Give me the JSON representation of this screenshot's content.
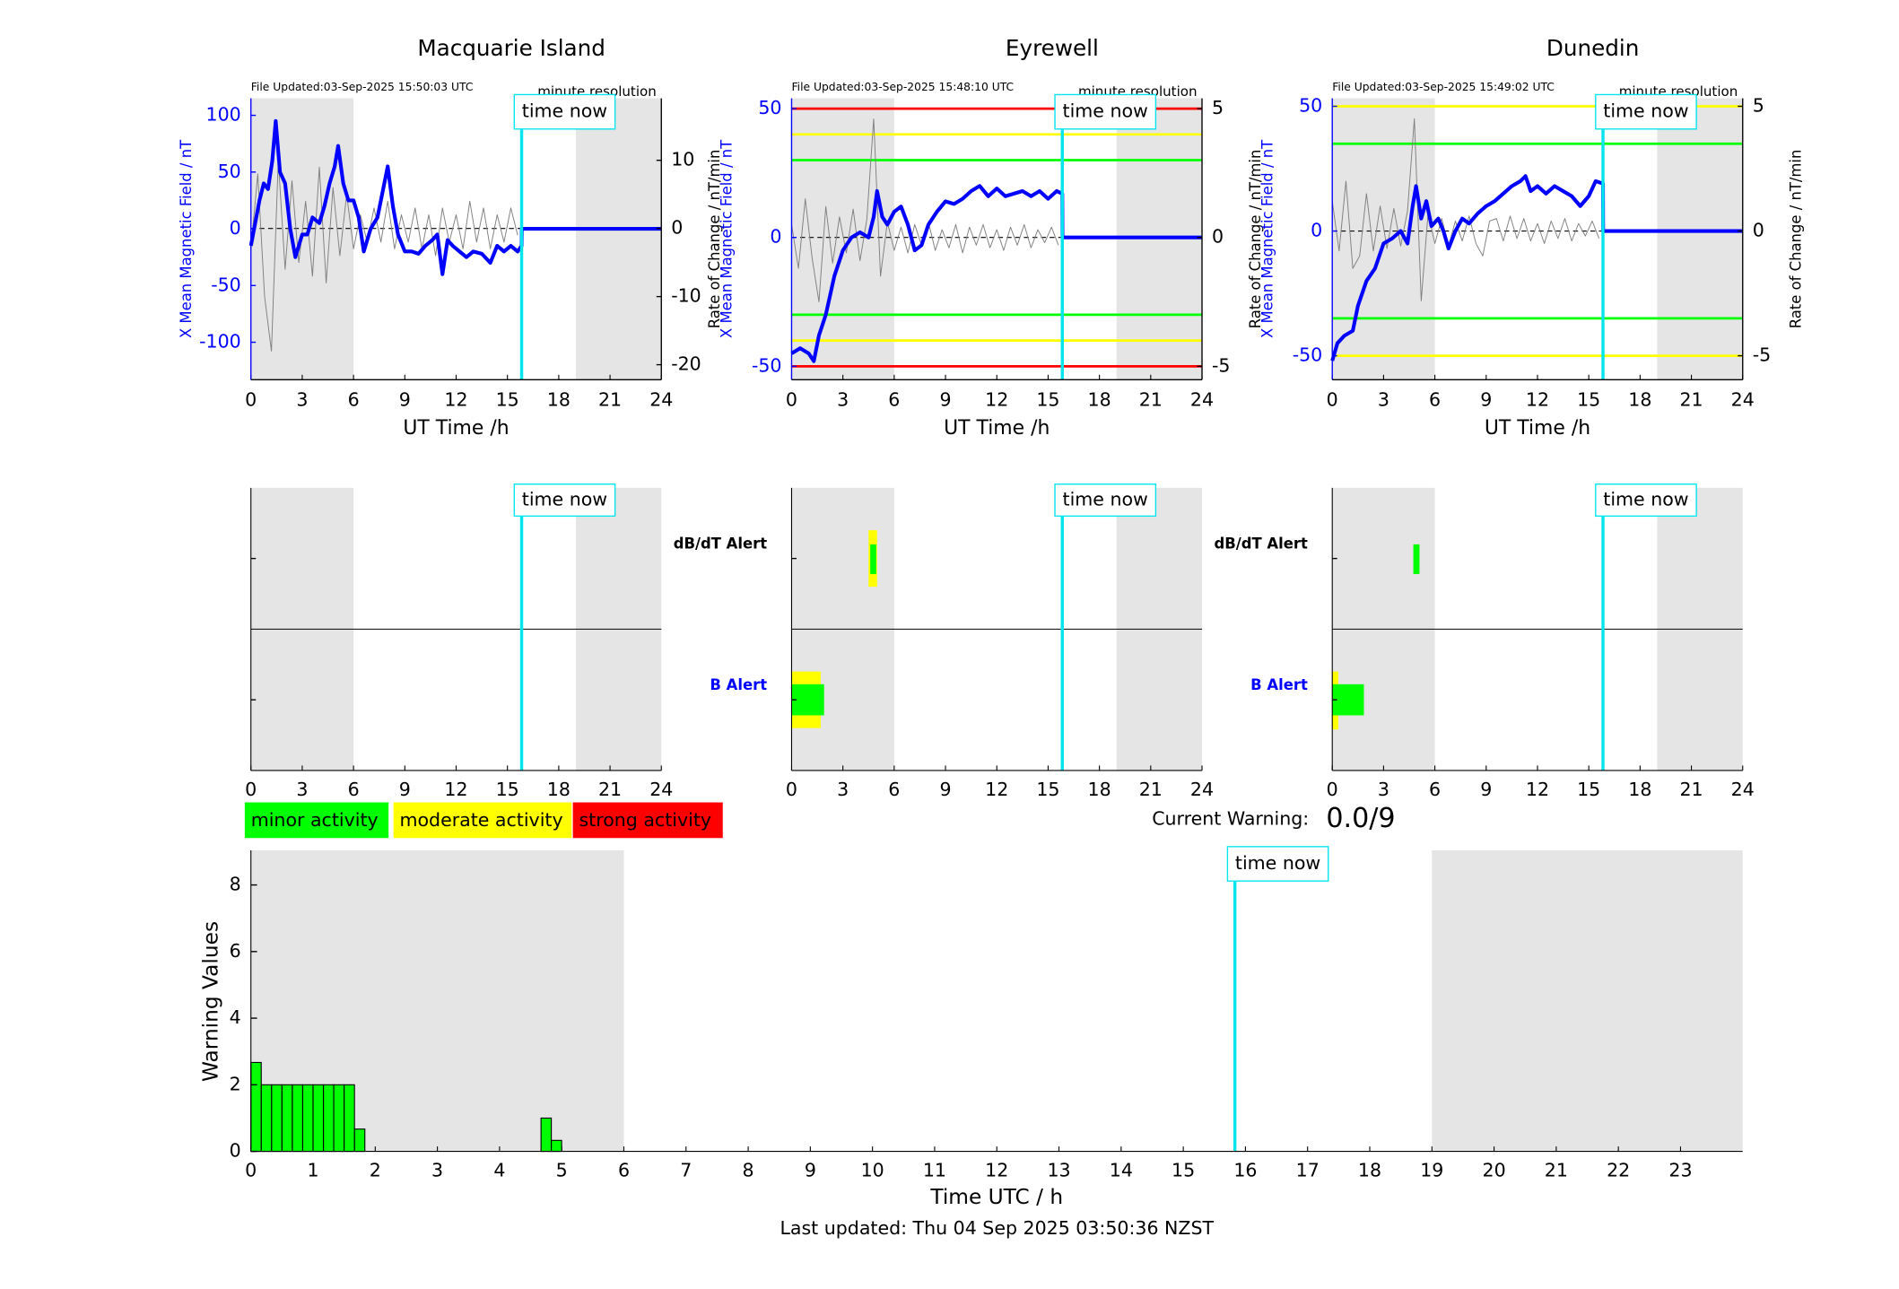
{
  "chart_data": [
    {
      "type": "line",
      "title": "Macquarie Island",
      "subtitle": "File Updated:03-Sep-2025 15:50:03 UTC",
      "note": "minute resolution",
      "xlabel": "UT Time /h",
      "ylabel": "X Mean Magnetic Field / nT",
      "y2label": "Rate of Change / nT/min",
      "xlim": [
        0,
        24
      ],
      "xticks": [
        0,
        3,
        6,
        9,
        12,
        15,
        18,
        21,
        24
      ],
      "ylim": [
        -133,
        115
      ],
      "yticks": [
        -100,
        -50,
        0,
        50,
        100
      ],
      "y2lim": [
        -22.2,
        19.1
      ],
      "y2ticks": [
        -20,
        -10,
        0,
        10
      ],
      "shaded": [
        [
          0,
          6
        ],
        [
          19,
          24
        ]
      ],
      "shade_color": "#e5e5e5",
      "annotation": {
        "text": "time now",
        "x": 15.83,
        "color": "#00e5ee"
      },
      "thresholds": [],
      "series": [
        {
          "axis": "y2",
          "color": "#808080",
          "x": [
            0,
            0.4,
            0.8,
            1.2,
            1.6,
            2,
            2.4,
            2.8,
            3.2,
            3.6,
            4,
            4.4,
            4.8,
            5.2,
            5.6,
            6,
            6.4,
            6.8,
            7.2,
            7.6,
            8,
            8.4,
            8.8,
            9.2,
            9.6,
            10,
            10.4,
            10.8,
            11.2,
            11.6,
            12,
            12.4,
            12.8,
            13.2,
            13.6,
            14,
            14.4,
            14.8,
            15.2,
            15.6
          ],
          "values": [
            -3,
            8,
            -10,
            -18,
            10,
            -6,
            7,
            -5,
            4,
            -7,
            9,
            -8,
            6,
            -4,
            5,
            -3,
            2,
            -2,
            3,
            -2,
            4,
            -3,
            2,
            -2,
            3,
            -3,
            2,
            -4,
            3,
            -2,
            2,
            -3,
            4,
            -2,
            3,
            -3,
            2,
            -2,
            3,
            -1
          ]
        },
        {
          "axis": "y",
          "color": "#0000ff",
          "x": [
            0,
            0.25,
            0.5,
            0.75,
            1,
            1.25,
            1.45,
            1.7,
            2,
            2.3,
            2.6,
            3,
            3.3,
            3.6,
            4,
            4.3,
            4.6,
            4.9,
            5.1,
            5.4,
            5.7,
            6,
            6.3,
            6.6,
            7,
            7.4,
            7.8,
            8,
            8.3,
            8.6,
            9,
            9.4,
            9.8,
            10.2,
            10.6,
            10.9,
            11.2,
            11.5,
            11.8,
            12.2,
            12.6,
            13,
            13.5,
            14,
            14.4,
            14.8,
            15.2,
            15.6,
            15.83,
            15.84,
            24
          ],
          "values": [
            -15,
            5,
            25,
            40,
            35,
            60,
            95,
            50,
            40,
            0,
            -25,
            -5,
            -5,
            10,
            5,
            20,
            40,
            55,
            73,
            40,
            25,
            25,
            10,
            -20,
            0,
            10,
            40,
            55,
            20,
            -5,
            -20,
            -20,
            -22,
            -15,
            -10,
            -5,
            -40,
            -10,
            -15,
            -20,
            -25,
            -20,
            -22,
            -30,
            -15,
            -20,
            -15,
            -20,
            -15,
            0,
            0
          ]
        }
      ]
    },
    {
      "type": "line",
      "title": "Eyrewell",
      "subtitle": "File Updated:03-Sep-2025 15:48:10 UTC",
      "note": "minute resolution",
      "xlabel": "UT Time /h",
      "ylabel": "X Mean Magnetic Field / nT",
      "y2label": "Rate of Change / nT/min",
      "xlim": [
        0,
        24
      ],
      "xticks": [
        0,
        3,
        6,
        9,
        12,
        15,
        18,
        21,
        24
      ],
      "ylim": [
        -55.2,
        54
      ],
      "yticks": [
        -50,
        0,
        50
      ],
      "y2lim": [
        -5.52,
        5.4
      ],
      "y2ticks": [
        -5,
        0,
        5
      ],
      "shaded": [
        [
          0,
          6
        ],
        [
          19,
          24
        ]
      ],
      "shade_color": "#e5e5e5",
      "annotation": {
        "text": "time now",
        "x": 15.83,
        "color": "#00e5ee"
      },
      "thresholds": [
        {
          "value": 50,
          "color": "#ff0000"
        },
        {
          "value": -50,
          "color": "#ff0000"
        },
        {
          "value": 40,
          "color": "#ffff00"
        },
        {
          "value": -40,
          "color": "#ffff00"
        },
        {
          "value": 30,
          "color": "#00ff00"
        },
        {
          "value": -30,
          "color": "#00ff00"
        }
      ],
      "series": [
        {
          "axis": "y2",
          "color": "#808080",
          "x": [
            0,
            0.4,
            0.8,
            1.2,
            1.6,
            2,
            2.4,
            2.8,
            3.2,
            3.6,
            4,
            4.4,
            4.8,
            5.2,
            5.6,
            6,
            6.4,
            6.8,
            7.2,
            7.6,
            8,
            8.4,
            8.8,
            9.2,
            9.6,
            10,
            10.4,
            10.8,
            11.2,
            11.6,
            12,
            12.4,
            12.8,
            13.2,
            13.6,
            14,
            14.4,
            14.8,
            15.2,
            15.6
          ],
          "values": [
            0.5,
            -1.2,
            1.5,
            -0.8,
            -2.5,
            1.2,
            -1,
            0.8,
            -0.6,
            1.1,
            -0.9,
            0.7,
            4.6,
            -1.5,
            0.6,
            -0.5,
            0.4,
            -0.6,
            0.5,
            -0.3,
            0.6,
            -0.5,
            0.3,
            -0.4,
            0.5,
            -0.6,
            0.4,
            -0.3,
            0.5,
            -0.4,
            0.3,
            -0.5,
            0.4,
            -0.3,
            0.5,
            -0.4,
            0.3,
            -0.2,
            0.4,
            -0.3
          ]
        },
        {
          "axis": "y",
          "color": "#0000ff",
          "x": [
            0,
            0.5,
            1,
            1.3,
            1.6,
            2,
            2.5,
            3,
            3.5,
            4,
            4.5,
            4.8,
            5,
            5.3,
            5.6,
            6,
            6.4,
            6.8,
            7.2,
            7.6,
            8,
            8.5,
            9,
            9.5,
            10,
            10.5,
            11,
            11.5,
            12,
            12.5,
            13,
            13.5,
            14,
            14.5,
            15,
            15.5,
            15.83,
            15.84,
            24
          ],
          "values": [
            -45,
            -43,
            -45,
            -48,
            -38,
            -30,
            -15,
            -5,
            0,
            2,
            0,
            8,
            18,
            8,
            5,
            10,
            12,
            5,
            -5,
            -3,
            5,
            10,
            14,
            13,
            15,
            18,
            20,
            16,
            19,
            16,
            17,
            18,
            16,
            18,
            15,
            18,
            17,
            0,
            0
          ]
        }
      ]
    },
    {
      "type": "line",
      "title": "Dunedin",
      "subtitle": "File Updated:03-Sep-2025 15:49:02 UTC",
      "note": "minute resolution",
      "xlabel": "UT Time /h",
      "ylabel": "X Mean Magnetic Field / nT",
      "y2label": "Rate of Change / nT/min",
      "xlim": [
        0,
        24
      ],
      "xticks": [
        0,
        3,
        6,
        9,
        12,
        15,
        18,
        21,
        24
      ],
      "ylim": [
        -59.6,
        53.2
      ],
      "yticks": [
        -50,
        0,
        50
      ],
      "y2lim": [
        -5.96,
        5.32
      ],
      "y2ticks": [
        -5,
        0,
        5
      ],
      "shaded": [
        [
          0,
          6
        ],
        [
          19,
          24
        ]
      ],
      "shade_color": "#e5e5e5",
      "annotation": {
        "text": "time now",
        "x": 15.83,
        "color": "#00e5ee"
      },
      "thresholds": [
        {
          "value": 50,
          "color": "#ffff00"
        },
        {
          "value": -50,
          "color": "#ffff00"
        },
        {
          "value": 35,
          "color": "#00ff00"
        },
        {
          "value": -35,
          "color": "#00ff00"
        }
      ],
      "series": [
        {
          "axis": "y2",
          "color": "#808080",
          "x": [
            0,
            0.4,
            0.8,
            1.2,
            1.6,
            2,
            2.4,
            2.8,
            3.2,
            3.6,
            4,
            4.4,
            4.8,
            5.2,
            5.6,
            6,
            6.4,
            6.8,
            7.2,
            7.6,
            8,
            8.4,
            8.8,
            9.2,
            9.6,
            10,
            10.4,
            10.8,
            11.2,
            11.6,
            12,
            12.4,
            12.8,
            13.2,
            13.6,
            14,
            14.4,
            14.8,
            15.2,
            15.6
          ],
          "values": [
            1.2,
            -0.8,
            2,
            -1.5,
            -1,
            1.5,
            -0.8,
            1,
            -0.7,
            0.9,
            -0.6,
            0.8,
            4.5,
            -2.8,
            0.7,
            -0.5,
            0.5,
            -0.6,
            0.4,
            -0.4,
            0.6,
            -0.5,
            -1,
            0.4,
            0.5,
            -0.4,
            0.6,
            -0.3,
            0.5,
            -0.4,
            0.3,
            -0.5,
            0.4,
            -0.3,
            0.5,
            -0.4,
            0.3,
            -0.2,
            0.4,
            -0.3
          ]
        },
        {
          "axis": "y",
          "color": "#0000ff",
          "x": [
            0,
            0.3,
            0.7,
            1.2,
            1.5,
            2,
            2.5,
            3,
            3.5,
            4,
            4.4,
            4.7,
            4.9,
            5.2,
            5.5,
            5.8,
            6.2,
            6.5,
            6.8,
            7.2,
            7.6,
            8,
            8.5,
            9,
            9.5,
            10,
            10.5,
            11,
            11.3,
            11.6,
            12,
            12.5,
            13,
            13.5,
            14,
            14.5,
            15,
            15.4,
            15.83,
            15.84,
            24
          ],
          "values": [
            -52,
            -45,
            -42,
            -40,
            -30,
            -20,
            -15,
            -5,
            -3,
            0,
            -5,
            10,
            18,
            5,
            12,
            2,
            5,
            0,
            -7,
            0,
            5,
            3,
            7,
            10,
            12,
            15,
            18,
            20,
            22,
            16,
            18,
            15,
            18,
            16,
            14,
            10,
            14,
            20,
            19,
            0,
            0
          ]
        }
      ]
    },
    {
      "type": "alert",
      "xlim": [
        0,
        24
      ],
      "xticks": [
        0,
        3,
        6,
        9,
        12,
        15,
        18,
        21,
        24
      ],
      "ylim": [
        0,
        2
      ],
      "shaded": [
        [
          0,
          6
        ],
        [
          19,
          24
        ]
      ],
      "shade_color": "#e5e5e5",
      "annotation": {
        "text": "time now",
        "x": 15.83,
        "color": "#00e5ee"
      },
      "rows": [],
      "segments": []
    },
    {
      "type": "alert",
      "xlim": [
        0,
        24
      ],
      "xticks": [
        0,
        3,
        6,
        9,
        12,
        15,
        18,
        21,
        24
      ],
      "ylim": [
        0,
        2
      ],
      "shaded": [
        [
          0,
          6
        ],
        [
          19,
          24
        ]
      ],
      "shade_color": "#e5e5e5",
      "annotation": {
        "text": "time now",
        "x": 15.83,
        "color": "#00e5ee"
      },
      "rows": [
        {
          "label": "dB/dT Alert",
          "color": "#000000"
        },
        {
          "label": "B Alert",
          "color": "#0000ff"
        }
      ],
      "segments": [
        {
          "color": "#ffff00",
          "x": [
            4.5,
            5.0
          ],
          "y": [
            1.3,
            1.7
          ]
        },
        {
          "color": "#00ff00",
          "x": [
            4.6,
            4.95
          ],
          "y": [
            1.39,
            1.6
          ]
        },
        {
          "color": "#ffff00",
          "x": [
            0,
            1.7
          ],
          "y": [
            0.3,
            0.7
          ]
        },
        {
          "color": "#00ff00",
          "x": [
            0,
            1.9
          ],
          "y": [
            0.39,
            0.61
          ]
        }
      ]
    },
    {
      "type": "alert",
      "xlim": [
        0,
        24
      ],
      "xticks": [
        0,
        3,
        6,
        9,
        12,
        15,
        18,
        21,
        24
      ],
      "ylim": [
        0,
        2
      ],
      "shaded": [
        [
          0,
          6
        ],
        [
          19,
          24
        ]
      ],
      "shade_color": "#e5e5e5",
      "annotation": {
        "text": "time now",
        "x": 15.83,
        "color": "#00e5ee"
      },
      "rows": [
        {
          "label": "dB/dT Alert",
          "color": "#000000"
        },
        {
          "label": "B Alert",
          "color": "#0000ff"
        }
      ],
      "segments": [
        {
          "color": "#00ff00",
          "x": [
            4.74,
            5.1
          ],
          "y": [
            1.39,
            1.6
          ]
        },
        {
          "color": "#ffff00",
          "x": [
            0,
            0.35
          ],
          "y": [
            0.29,
            0.7
          ]
        },
        {
          "color": "#00ff00",
          "x": [
            0,
            1.85
          ],
          "y": [
            0.39,
            0.61
          ]
        }
      ]
    },
    {
      "type": "bar",
      "xlabel": "Time UTC / h",
      "ylabel": "Warning Values",
      "xlim": [
        0,
        24
      ],
      "xticks": [
        0,
        1,
        2,
        3,
        4,
        5,
        6,
        7,
        8,
        9,
        10,
        11,
        12,
        13,
        14,
        15,
        16,
        17,
        18,
        19,
        20,
        21,
        22,
        23
      ],
      "ylim": [
        0,
        9.04
      ],
      "yticks": [
        0,
        2,
        4,
        6,
        8
      ],
      "shaded": [
        [
          0,
          6
        ],
        [
          19,
          24
        ]
      ],
      "shade_color": "#e5e5e5",
      "annotation": {
        "text": "time now",
        "x": 15.83,
        "color": "#00e5ee"
      },
      "color": "#00ff00",
      "x": [
        0,
        0.167,
        0.333,
        0.5,
        0.667,
        0.833,
        1,
        1.167,
        1.333,
        1.5,
        1.667,
        4.667,
        4.833
      ],
      "values": [
        2.67,
        2,
        2,
        2,
        2,
        2,
        2,
        2,
        2,
        2,
        0.67,
        1,
        0.33
      ],
      "legend": [
        {
          "label": "minor activity",
          "color": "#00ff00"
        },
        {
          "label": "moderate activity",
          "color": "#ffff00"
        },
        {
          "label": "strong activity",
          "color": "#ff0000"
        }
      ],
      "current_warning_label": "Current Warning:",
      "current_warning": "0.0/9",
      "footer": "Last updated: Thu 04 Sep 2025 03:50:36 NZST"
    }
  ]
}
